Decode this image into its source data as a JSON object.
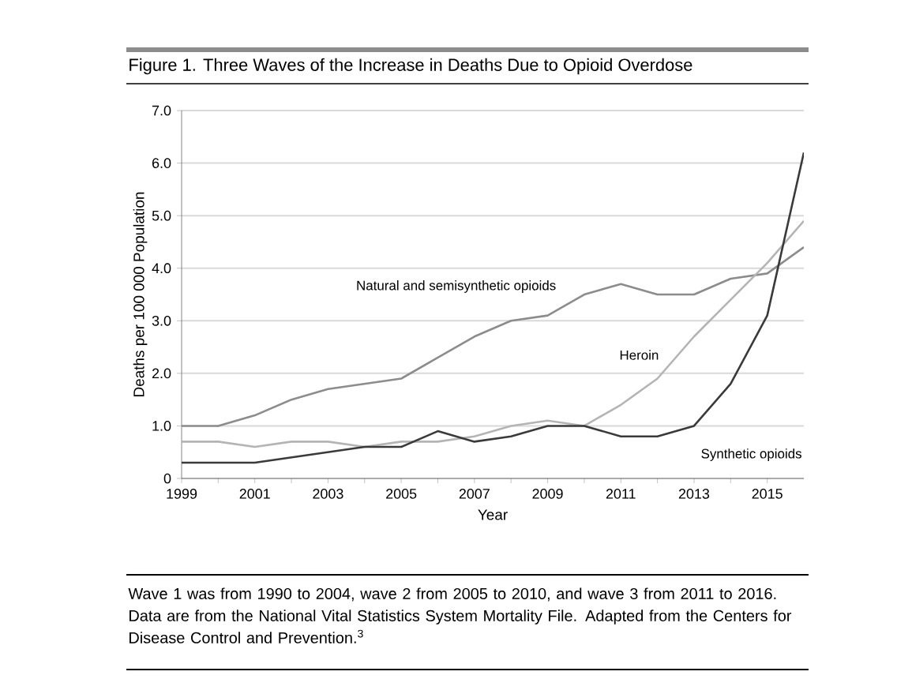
{
  "chart_data": {
    "type": "line",
    "title": "Figure 1. Three Waves of the Increase in Deaths Due to Opioid Overdose",
    "xlabel": "Year",
    "ylabel": "Deaths per 100 000 Population",
    "x": [
      1999,
      2000,
      2001,
      2002,
      2003,
      2004,
      2005,
      2006,
      2007,
      2008,
      2009,
      2010,
      2011,
      2012,
      2013,
      2014,
      2015,
      2016
    ],
    "series": [
      {
        "name": "Natural and semisynthetic opioids",
        "color": "#8c8c8c",
        "values": [
          1.0,
          1.0,
          1.2,
          1.5,
          1.7,
          1.8,
          1.9,
          2.3,
          2.7,
          3.0,
          3.1,
          3.5,
          3.7,
          3.5,
          3.5,
          3.8,
          3.9,
          4.4
        ]
      },
      {
        "name": "Heroin",
        "color": "#b4b4b4",
        "values": [
          0.7,
          0.7,
          0.6,
          0.7,
          0.7,
          0.6,
          0.7,
          0.7,
          0.8,
          1.0,
          1.1,
          1.0,
          1.4,
          1.9,
          2.7,
          3.4,
          4.1,
          4.9
        ]
      },
      {
        "name": "Synthetic opioids",
        "color": "#3a3a3a",
        "values": [
          0.3,
          0.3,
          0.3,
          0.4,
          0.5,
          0.6,
          0.6,
          0.9,
          0.7,
          0.8,
          1.0,
          1.0,
          0.8,
          0.8,
          1.0,
          1.8,
          3.1,
          6.2
        ]
      }
    ],
    "xlim": [
      1999,
      2016
    ],
    "xticks": [
      1999,
      2001,
      2003,
      2005,
      2007,
      2009,
      2011,
      2013,
      2015
    ],
    "ylim": [
      0,
      7
    ],
    "yticks": [
      0,
      {
        "value": 1,
        "label": "1.0"
      },
      {
        "value": 2,
        "label": "2.0"
      },
      {
        "value": 3,
        "label": "3.0"
      },
      {
        "value": 4,
        "label": "4.0"
      },
      {
        "value": 5,
        "label": "5.0"
      },
      {
        "value": 6,
        "label": "6.0"
      },
      {
        "value": 7,
        "label": "7.0"
      }
    ],
    "grid": "y",
    "annotations": [
      "Wave 1 was from 1990 to 2004, wave 2 from 2005 to 2010, and wave 3 from 2011 to 2016. Data are from the National Vital Statistics System Mortality File. Adapted from the Centers for Disease Control and Prevention.$^{3}$"
    ]
  }
}
